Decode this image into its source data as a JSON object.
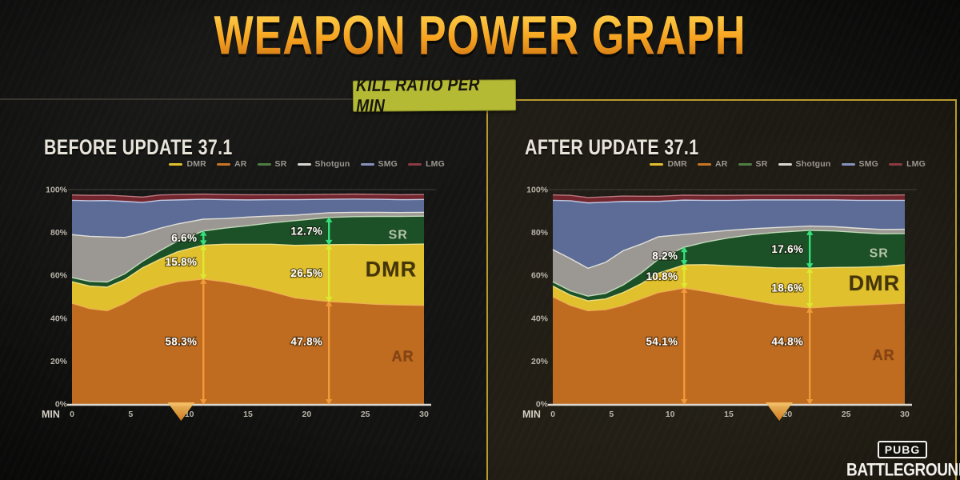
{
  "header": {
    "title": "WEAPON POWER GRAPH",
    "badge": "KILL RATIO PER MIN"
  },
  "logo": {
    "pubg": "PUBG",
    "battlegrounds": "BATTLEGROUNDS"
  },
  "colors": {
    "frame_yellow": "#b8992e",
    "badge_bg": "#b4ba33",
    "badge_text": "#17150e",
    "title_top": "#ffd24d",
    "title_mid": "#f6a320",
    "title_bottom": "#c96f15",
    "axis_text": "#b7b3a8",
    "panel_title": "#e8e4da",
    "background": "#121211"
  },
  "chart_data": [
    {
      "type": "area",
      "stacked": true,
      "title": "BEFORE UPDATE 37.1",
      "xlabel": "MIN",
      "ylabel": "",
      "xlim": [
        0,
        30
      ],
      "ylim": [
        0,
        100
      ],
      "xticks": [
        "0",
        "5",
        "10",
        "15",
        "20",
        "25",
        "30"
      ],
      "yticks": [
        "100%",
        "80%",
        "60%",
        "40%",
        "20%",
        "0%"
      ],
      "legend_position": "top-right",
      "legend": [
        {
          "label": "DMR",
          "color": "#e0c02c"
        },
        {
          "label": "AR",
          "color": "#c97425"
        },
        {
          "label": "SR",
          "color": "#4e7d44"
        },
        {
          "label": "Shotgun",
          "color": "#d9d6cf"
        },
        {
          "label": "SMG",
          "color": "#8692bb"
        },
        {
          "label": "LMG",
          "color": "#8a3a42"
        }
      ],
      "x": [
        0,
        1.5,
        3,
        4.5,
        6,
        7.5,
        9,
        11.2,
        13,
        15,
        17,
        19,
        21.9,
        24,
        26,
        28,
        30
      ],
      "series": [
        {
          "name": "AR",
          "color": "#bf6b20",
          "edge": "#f2b355",
          "values": [
            47,
            44.5,
            43.5,
            47,
            52,
            55,
            57,
            58.3,
            57,
            55,
            52.5,
            49.5,
            47.8,
            47.2,
            46.5,
            46.2,
            46
          ]
        },
        {
          "name": "DMR",
          "color": "#e0c02c",
          "edge": "#f5e894",
          "values": [
            10,
            10.5,
            11,
            11,
            11.5,
            12.5,
            14,
            15.8,
            17.5,
            19.5,
            22,
            24.5,
            26.5,
            27.2,
            27.8,
            28.2,
            28.6
          ]
        },
        {
          "name": "SR",
          "color": "#1c5128",
          "edge": "#cde4c4",
          "values": [
            2,
            2.2,
            2.4,
            2.7,
            3,
            4,
            5,
            6.6,
            7.5,
            8.7,
            10,
            11.5,
            12.7,
            13,
            13.2,
            13.1,
            13
          ]
        },
        {
          "name": "Shotgun",
          "color": "#9b9893",
          "edge": "#edebe3",
          "values": [
            20,
            21,
            21,
            17,
            13,
            10.5,
            8,
            5.5,
            4.5,
            4,
            3.2,
            2.6,
            2.2,
            2,
            1.9,
            1.8,
            1.8
          ]
        },
        {
          "name": "SMG",
          "color": "#5d6c97",
          "edge": "#ccd5ee",
          "values": [
            16,
            16.6,
            17,
            16.8,
            14.5,
            13,
            11.2,
            9.3,
            8.8,
            8,
            7.6,
            7.2,
            6.3,
            6.2,
            6.1,
            6,
            6
          ]
        },
        {
          "name": "LMG",
          "color": "#73262e",
          "edge": "#c9818a",
          "values": [
            2.5,
            2.5,
            2.5,
            2.5,
            2.5,
            2.5,
            2.5,
            2.4,
            2.4,
            2.4,
            2.3,
            2.3,
            2.3,
            2.3,
            2.3,
            2.3,
            2.3
          ]
        }
      ],
      "markers": [
        {
          "x": 11.2,
          "segments": [
            {
              "label": "58.3%",
              "from": 0,
              "to": 58.3,
              "color": "#f09a3a"
            },
            {
              "label": "15.8%",
              "from": 58.3,
              "to": 74.1,
              "color": "#dde832"
            },
            {
              "label": "6.6%",
              "from": 74.1,
              "to": 80.7,
              "color": "#35e07a"
            }
          ]
        },
        {
          "x": 21.9,
          "segments": [
            {
              "label": "47.8%",
              "from": 0,
              "to": 47.8,
              "color": "#f09a3a"
            },
            {
              "label": "26.5%",
              "from": 47.8,
              "to": 74.3,
              "color": "#dde832"
            },
            {
              "label": "12.7%",
              "from": 74.3,
              "to": 87.0,
              "color": "#35e07a"
            }
          ]
        }
      ],
      "area_labels": [
        {
          "text": "SR",
          "x": 27.8,
          "y": 77,
          "color": "#b4c6a9",
          "size": 16
        },
        {
          "text": "DMR",
          "x": 27.2,
          "y": 59.5,
          "color": "#453509",
          "size": 27
        },
        {
          "text": "AR",
          "x": 28.2,
          "y": 20,
          "color": "rgba(105,48,12,0.65)",
          "size": 18
        }
      ],
      "pointer_x": 9.3
    },
    {
      "type": "area",
      "stacked": true,
      "title": "AFTER UPDATE 37.1",
      "xlabel": "MIN",
      "ylabel": "",
      "xlim": [
        0,
        30
      ],
      "ylim": [
        0,
        100
      ],
      "xticks": [
        "0",
        "5",
        "10",
        "15",
        "20",
        "25",
        "30"
      ],
      "yticks": [
        "100%",
        "80%",
        "60%",
        "40%",
        "20%",
        "0%"
      ],
      "legend_position": "top-right",
      "legend": [
        {
          "label": "DMR",
          "color": "#e0c02c"
        },
        {
          "label": "AR",
          "color": "#c97425"
        },
        {
          "label": "SR",
          "color": "#4e7d44"
        },
        {
          "label": "Shotgun",
          "color": "#d9d6cf"
        },
        {
          "label": "SMG",
          "color": "#8692bb"
        },
        {
          "label": "LMG",
          "color": "#8a3a42"
        }
      ],
      "x": [
        0,
        1.5,
        3,
        4.5,
        6,
        7.5,
        9,
        11.2,
        13,
        15,
        17,
        19,
        21.9,
        24,
        26,
        28,
        30
      ],
      "series": [
        {
          "name": "AR",
          "color": "#bf6b20",
          "edge": "#f2b355",
          "values": [
            50,
            46,
            43.5,
            44,
            46,
            49,
            52,
            54.1,
            52.5,
            50.5,
            48.5,
            46.5,
            44.8,
            45.5,
            46,
            46.5,
            47
          ]
        },
        {
          "name": "DMR",
          "color": "#e0c02c",
          "edge": "#f5e894",
          "values": [
            5,
            4.8,
            4.6,
            5,
            6,
            7,
            9,
            10.8,
            12.5,
            14,
            15.5,
            17,
            18.6,
            18.2,
            17.8,
            17.6,
            18
          ]
        },
        {
          "name": "SR",
          "color": "#1c5128",
          "edge": "#cde4c4",
          "values": [
            2,
            2,
            2.2,
            2.6,
            3.5,
            5,
            6.5,
            8.2,
            10.5,
            13,
            15,
            16.5,
            17.6,
            17,
            16.2,
            15.3,
            14.5
          ]
        },
        {
          "name": "Shotgun",
          "color": "#9b9893",
          "edge": "#edebe3",
          "values": [
            15,
            15,
            13,
            14.5,
            16,
            13.5,
            10.5,
            6,
            4.5,
            3.5,
            2.8,
            2.3,
            2,
            2,
            2,
            2,
            2
          ]
        },
        {
          "name": "SMG",
          "color": "#5d6c97",
          "edge": "#ccd5ee",
          "values": [
            23,
            27,
            30.5,
            28,
            23,
            20,
            16.5,
            16,
            15,
            14,
            13.4,
            12.9,
            12.2,
            12.5,
            13,
            13.6,
            13.5
          ]
        },
        {
          "name": "LMG",
          "color": "#73262e",
          "edge": "#c9818a",
          "values": [
            2.5,
            2.5,
            2.5,
            2.5,
            2.5,
            2.4,
            2.4,
            2.3,
            2.3,
            2.3,
            2.2,
            2.2,
            2.2,
            2.2,
            2.3,
            2.4,
            2.5
          ]
        }
      ],
      "markers": [
        {
          "x": 11.2,
          "segments": [
            {
              "label": "54.1%",
              "from": 0,
              "to": 54.1,
              "color": "#f09a3a"
            },
            {
              "label": "10.8%",
              "from": 54.1,
              "to": 64.9,
              "color": "#dde832"
            },
            {
              "label": "8.2%",
              "from": 64.9,
              "to": 73.1,
              "color": "#35e07a"
            }
          ]
        },
        {
          "x": 21.9,
          "segments": [
            {
              "label": "44.8%",
              "from": 0,
              "to": 44.8,
              "color": "#f09a3a"
            },
            {
              "label": "18.6%",
              "from": 44.8,
              "to": 63.4,
              "color": "#dde832"
            },
            {
              "label": "17.6%",
              "from": 63.4,
              "to": 81.0,
              "color": "#35e07a"
            }
          ]
        }
      ],
      "area_labels": [
        {
          "text": "SR",
          "x": 27.8,
          "y": 68.5,
          "color": "#b4c6a9",
          "size": 16
        },
        {
          "text": "DMR",
          "x": 27.4,
          "y": 53,
          "color": "#453509",
          "size": 27
        },
        {
          "text": "AR",
          "x": 28.2,
          "y": 20.5,
          "color": "rgba(105,48,12,0.65)",
          "size": 18
        }
      ],
      "pointer_x": 19.3
    }
  ]
}
